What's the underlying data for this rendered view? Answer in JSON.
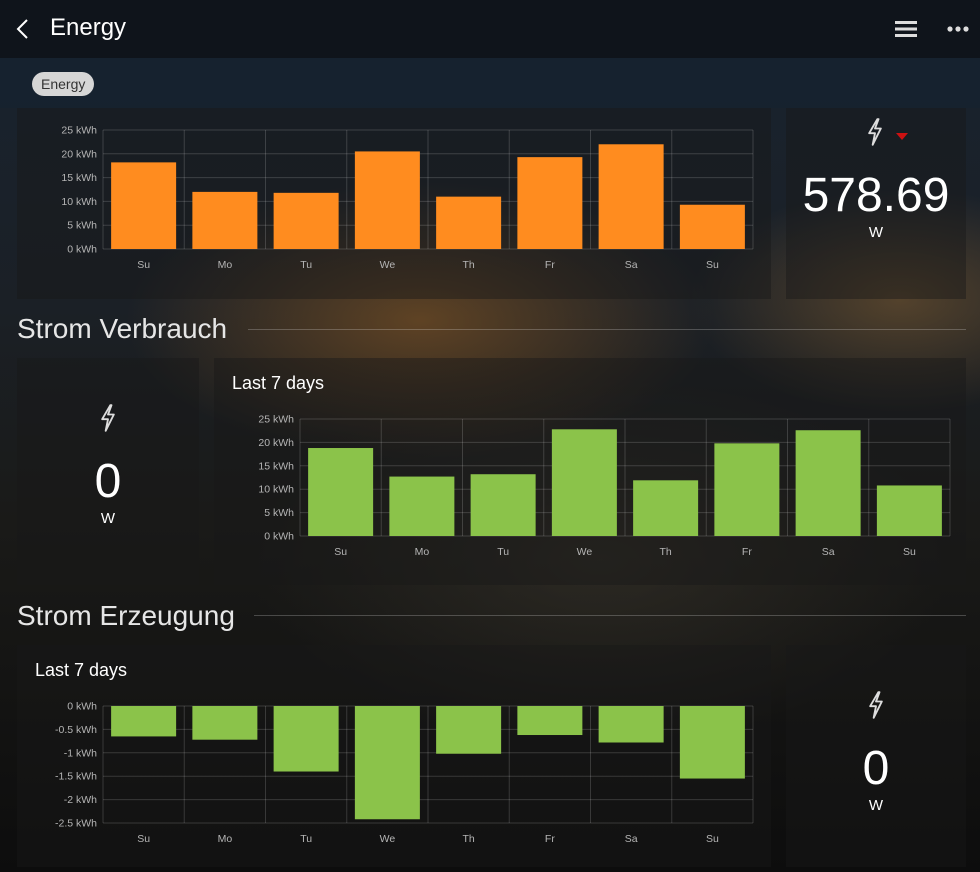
{
  "header": {
    "title": "Energy"
  },
  "tag": {
    "label": "Energy"
  },
  "sections": {
    "verbrauch": "Strom Verbrauch",
    "erzeugung": "Strom Erzeugung"
  },
  "colors": {
    "orange": "#ff8c1f",
    "green": "#8bc34a",
    "trend_down": "#cc1111"
  },
  "top_power": {
    "value": "578.69",
    "unit": "W"
  },
  "verbrauch_power": {
    "value": "0",
    "unit": "W"
  },
  "erzeugung_power": {
    "value": "0",
    "unit": "W"
  },
  "chart_data": [
    {
      "type": "bar",
      "title": "",
      "categories": [
        "Su",
        "Mo",
        "Tu",
        "We",
        "Th",
        "Fr",
        "Sa",
        "Su"
      ],
      "values": [
        18.2,
        12.0,
        11.8,
        20.5,
        11.0,
        19.3,
        22.0,
        9.3
      ],
      "ylim": [
        0,
        25
      ],
      "yticks": [
        0,
        5,
        10,
        15,
        20,
        25
      ],
      "ytick_labels": [
        "0 kWh",
        "5 kWh",
        "10 kWh",
        "15 kWh",
        "20 kWh",
        "25 kWh"
      ],
      "color": "#ff8c1f",
      "grid": true
    },
    {
      "type": "bar",
      "title": "Last 7 days",
      "categories": [
        "Su",
        "Mo",
        "Tu",
        "We",
        "Th",
        "Fr",
        "Sa",
        "Su"
      ],
      "values": [
        18.8,
        12.7,
        13.2,
        22.8,
        11.9,
        19.8,
        22.6,
        10.8
      ],
      "ylim": [
        0,
        25
      ],
      "yticks": [
        0,
        5,
        10,
        15,
        20,
        25
      ],
      "ytick_labels": [
        "0 kWh",
        "5 kWh",
        "10 kWh",
        "15 kWh",
        "20 kWh",
        "25 kWh"
      ],
      "color": "#8bc34a",
      "grid": true
    },
    {
      "type": "bar",
      "title": "Last 7 days",
      "categories": [
        "Su",
        "Mo",
        "Tu",
        "We",
        "Th",
        "Fr",
        "Sa",
        "Su"
      ],
      "values": [
        -0.65,
        -0.72,
        -1.4,
        -2.42,
        -1.02,
        -0.62,
        -0.78,
        -1.55
      ],
      "ylim": [
        -2.5,
        0
      ],
      "yticks": [
        0,
        -0.5,
        -1,
        -1.5,
        -2,
        -2.5
      ],
      "ytick_labels": [
        "0 kWh",
        "-0.5 kWh",
        "-1 kWh",
        "-1.5 kWh",
        "-2 kWh",
        "-2.5 kWh"
      ],
      "color": "#8bc34a",
      "grid": true
    }
  ]
}
